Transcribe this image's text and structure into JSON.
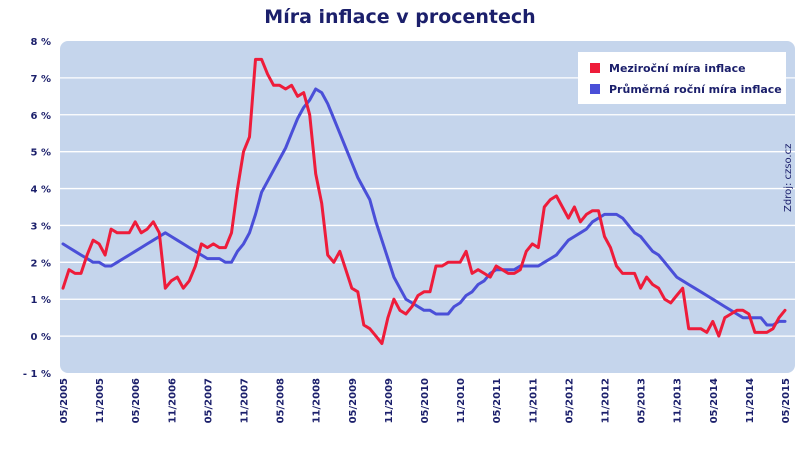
{
  "chart_data": {
    "type": "line",
    "title": "Míra inflace v procentech",
    "source": "Zdroj: czso.cz",
    "ylim": [
      -1,
      8
    ],
    "y_ticks": [
      {
        "value": 8,
        "label": "8 %"
      },
      {
        "value": 7,
        "label": "7 %"
      },
      {
        "value": 6,
        "label": "6 %"
      },
      {
        "value": 5,
        "label": "5 %"
      },
      {
        "value": 4,
        "label": "4 %"
      },
      {
        "value": 3,
        "label": "3 %"
      },
      {
        "value": 2,
        "label": "2 %"
      },
      {
        "value": 1,
        "label": "1 %"
      },
      {
        "value": 0,
        "label": "0 %"
      },
      {
        "value": -1,
        "label": "- 1 %"
      }
    ],
    "x_ticks": [
      "05/2005",
      "11/2005",
      "05/2006",
      "11/2006",
      "05/2007",
      "11/2007",
      "05/2008",
      "11/2008",
      "05/2009",
      "11/2009",
      "05/2010",
      "11/2010",
      "05/2011",
      "11/2011",
      "05/2012",
      "11/2012",
      "05/2013",
      "11/2013",
      "05/2014",
      "11/2014",
      "05/2015"
    ],
    "grid": true,
    "legend_position": "top-right",
    "colors": {
      "background": "#c5d5ec",
      "grid": "#ffffff",
      "text": "#1b1f6b"
    },
    "series": [
      {
        "name": "Meziroční míra inflace",
        "color": "#ee1c3a",
        "x": [
          "05/2005",
          "06/2005",
          "07/2005",
          "08/2005",
          "09/2005",
          "10/2005",
          "11/2005",
          "12/2005",
          "01/2006",
          "02/2006",
          "03/2006",
          "04/2006",
          "05/2006",
          "06/2006",
          "07/2006",
          "08/2006",
          "09/2006",
          "10/2006",
          "11/2006",
          "12/2006",
          "01/2007",
          "02/2007",
          "03/2007",
          "04/2007",
          "05/2007",
          "06/2007",
          "07/2007",
          "08/2007",
          "09/2007",
          "10/2007",
          "11/2007",
          "12/2007",
          "01/2008",
          "02/2008",
          "03/2008",
          "04/2008",
          "05/2008",
          "06/2008",
          "07/2008",
          "08/2008",
          "09/2008",
          "10/2008",
          "11/2008",
          "12/2008",
          "01/2009",
          "02/2009",
          "03/2009",
          "04/2009",
          "05/2009",
          "06/2009",
          "07/2009",
          "08/2009",
          "09/2009",
          "10/2009",
          "11/2009",
          "12/2009",
          "01/2010",
          "02/2010",
          "03/2010",
          "04/2010",
          "05/2010",
          "06/2010",
          "07/2010",
          "08/2010",
          "09/2010",
          "10/2010",
          "11/2010",
          "12/2010",
          "01/2011",
          "02/2011",
          "03/2011",
          "04/2011",
          "05/2011",
          "06/2011",
          "07/2011",
          "08/2011",
          "09/2011",
          "10/2011",
          "11/2011",
          "12/2011",
          "01/2012",
          "02/2012",
          "03/2012",
          "04/2012",
          "05/2012",
          "06/2012",
          "07/2012",
          "08/2012",
          "09/2012",
          "10/2012",
          "11/2012",
          "12/2012",
          "01/2013",
          "02/2013",
          "03/2013",
          "04/2013",
          "05/2013",
          "06/2013",
          "07/2013",
          "08/2013",
          "09/2013",
          "10/2013",
          "11/2013",
          "12/2013",
          "01/2014",
          "02/2014",
          "03/2014",
          "04/2014",
          "05/2014",
          "06/2014",
          "07/2014",
          "08/2014",
          "09/2014",
          "10/2014",
          "11/2014",
          "12/2014",
          "01/2015",
          "02/2015",
          "03/2015",
          "04/2015",
          "05/2015"
        ],
        "values": [
          1.3,
          1.8,
          1.7,
          1.7,
          2.2,
          2.6,
          2.5,
          2.2,
          2.9,
          2.8,
          2.8,
          2.8,
          3.1,
          2.8,
          2.9,
          3.1,
          2.8,
          1.3,
          1.5,
          1.6,
          1.3,
          1.5,
          1.9,
          2.5,
          2.4,
          2.5,
          2.4,
          2.4,
          2.8,
          4.0,
          5.0,
          5.4,
          7.5,
          7.5,
          7.1,
          6.8,
          6.8,
          6.7,
          6.8,
          6.5,
          6.6,
          6.0,
          4.4,
          3.6,
          2.2,
          2.0,
          2.3,
          1.8,
          1.3,
          1.2,
          0.3,
          0.2,
          0.0,
          -0.2,
          0.5,
          1.0,
          0.7,
          0.6,
          0.8,
          1.1,
          1.2,
          1.2,
          1.9,
          1.9,
          2.0,
          2.0,
          2.0,
          2.3,
          1.7,
          1.8,
          1.7,
          1.6,
          1.9,
          1.8,
          1.7,
          1.7,
          1.8,
          2.3,
          2.5,
          2.4,
          3.5,
          3.7,
          3.8,
          3.5,
          3.2,
          3.5,
          3.1,
          3.3,
          3.4,
          3.4,
          2.7,
          2.4,
          1.9,
          1.7,
          1.7,
          1.7,
          1.3,
          1.6,
          1.4,
          1.3,
          1.0,
          0.9,
          1.1,
          1.3,
          0.2,
          0.2,
          0.2,
          0.1,
          0.4,
          0.0,
          0.5,
          0.6,
          0.7,
          0.7,
          0.6,
          0.1,
          0.1,
          0.1,
          0.2,
          0.5,
          0.7
        ]
      },
      {
        "name": "Průměrná roční míra inflace",
        "color": "#4a4fd8",
        "x": [
          "05/2005",
          "06/2005",
          "07/2005",
          "08/2005",
          "09/2005",
          "10/2005",
          "11/2005",
          "12/2005",
          "01/2006",
          "02/2006",
          "03/2006",
          "04/2006",
          "05/2006",
          "06/2006",
          "07/2006",
          "08/2006",
          "09/2006",
          "10/2006",
          "11/2006",
          "12/2006",
          "01/2007",
          "02/2007",
          "03/2007",
          "04/2007",
          "05/2007",
          "06/2007",
          "07/2007",
          "08/2007",
          "09/2007",
          "10/2007",
          "11/2007",
          "12/2007",
          "01/2008",
          "02/2008",
          "03/2008",
          "04/2008",
          "05/2008",
          "06/2008",
          "07/2008",
          "08/2008",
          "09/2008",
          "10/2008",
          "11/2008",
          "12/2008",
          "01/2009",
          "02/2009",
          "03/2009",
          "04/2009",
          "05/2009",
          "06/2009",
          "07/2009",
          "08/2009",
          "09/2009",
          "10/2009",
          "11/2009",
          "12/2009",
          "01/2010",
          "02/2010",
          "03/2010",
          "04/2010",
          "05/2010",
          "06/2010",
          "07/2010",
          "08/2010",
          "09/2010",
          "10/2010",
          "11/2010",
          "12/2010",
          "01/2011",
          "02/2011",
          "03/2011",
          "04/2011",
          "05/2011",
          "06/2011",
          "07/2011",
          "08/2011",
          "09/2011",
          "10/2011",
          "11/2011",
          "12/2011",
          "01/2012",
          "02/2012",
          "03/2012",
          "04/2012",
          "05/2012",
          "06/2012",
          "07/2012",
          "08/2012",
          "09/2012",
          "10/2012",
          "11/2012",
          "12/2012",
          "01/2013",
          "02/2013",
          "03/2013",
          "04/2013",
          "05/2013",
          "06/2013",
          "07/2013",
          "08/2013",
          "09/2013",
          "10/2013",
          "11/2013",
          "12/2013",
          "01/2014",
          "02/2014",
          "03/2014",
          "04/2014",
          "05/2014",
          "06/2014",
          "07/2014",
          "08/2014",
          "09/2014",
          "10/2014",
          "11/2014",
          "12/2014",
          "01/2015",
          "02/2015",
          "03/2015",
          "04/2015",
          "05/2015"
        ],
        "values": [
          2.5,
          2.4,
          2.3,
          2.2,
          2.1,
          2.0,
          2.0,
          1.9,
          1.9,
          2.0,
          2.1,
          2.2,
          2.3,
          2.4,
          2.5,
          2.6,
          2.7,
          2.8,
          2.7,
          2.6,
          2.5,
          2.4,
          2.3,
          2.2,
          2.1,
          2.1,
          2.1,
          2.0,
          2.0,
          2.3,
          2.5,
          2.8,
          3.3,
          3.9,
          4.2,
          4.5,
          4.8,
          5.1,
          5.5,
          5.9,
          6.2,
          6.4,
          6.7,
          6.6,
          6.3,
          5.9,
          5.5,
          5.1,
          4.7,
          4.3,
          4.0,
          3.7,
          3.1,
          2.6,
          2.1,
          1.6,
          1.3,
          1.0,
          0.9,
          0.8,
          0.7,
          0.7,
          0.6,
          0.6,
          0.6,
          0.8,
          0.9,
          1.1,
          1.2,
          1.4,
          1.5,
          1.7,
          1.8,
          1.8,
          1.8,
          1.8,
          1.9,
          1.9,
          1.9,
          1.9,
          2.0,
          2.1,
          2.2,
          2.4,
          2.6,
          2.7,
          2.8,
          2.9,
          3.1,
          3.2,
          3.3,
          3.3,
          3.3,
          3.2,
          3.0,
          2.8,
          2.7,
          2.5,
          2.3,
          2.2,
          2.0,
          1.8,
          1.6,
          1.5,
          1.4,
          1.3,
          1.2,
          1.1,
          1.0,
          0.9,
          0.8,
          0.7,
          0.6,
          0.5,
          0.5,
          0.5,
          0.5,
          0.3,
          0.3,
          0.4,
          0.4
        ]
      }
    ]
  }
}
